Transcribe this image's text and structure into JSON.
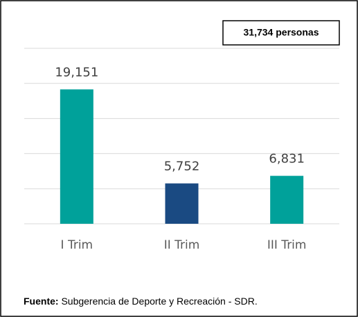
{
  "chart_data": {
    "type": "bar",
    "annotation": "31,734 personas",
    "categories": [
      "I Trim",
      "II Trim",
      "III Trim"
    ],
    "values": [
      19151,
      5752,
      6831
    ],
    "value_labels": [
      "19,151",
      "5,752",
      "6,831"
    ],
    "colors": [
      "#00a19a",
      "#1a4a82",
      "#00a19a"
    ],
    "ylim": [
      0,
      25000
    ],
    "yticks": [
      0,
      5000,
      10000,
      15000,
      20000,
      25000
    ],
    "grid": true,
    "source_label": "Fuente:",
    "source_text": "Subgerencia de Deporte y Recreación - SDR."
  }
}
